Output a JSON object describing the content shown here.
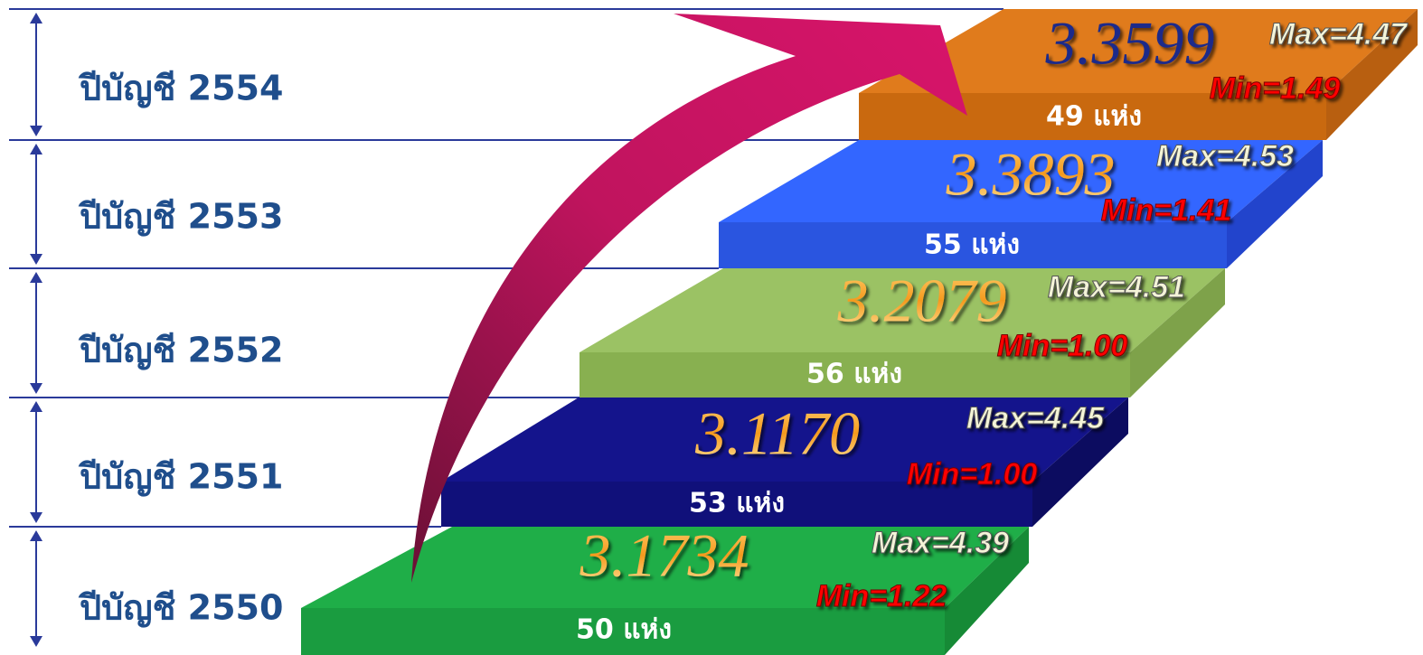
{
  "rows": [
    {
      "year_label": "ปีบัญชี 2554",
      "score": "3.3599",
      "max": "Max=4.47",
      "min": "Min=1.49",
      "count": "49 แห่ง"
    },
    {
      "year_label": "ปีบัญชี 2553",
      "score": "3.3893",
      "max": "Max=4.53",
      "min": "Min=1.41",
      "count": "55 แห่ง"
    },
    {
      "year_label": "ปีบัญชี 2552",
      "score": "3.2079",
      "max": "Max=4.51",
      "min": "Min=1.00",
      "count": "56 แห่ง"
    },
    {
      "year_label": "ปีบัญชี 2551",
      "score": "3.1170",
      "max": "Max=4.45",
      "min": "Min=1.00",
      "count": "53 แห่ง"
    },
    {
      "year_label": "ปีบัญชี 2550",
      "score": "3.1734",
      "max": "Max=4.39",
      "min": "Min=1.22",
      "count": "50 แห่ง"
    }
  ]
}
